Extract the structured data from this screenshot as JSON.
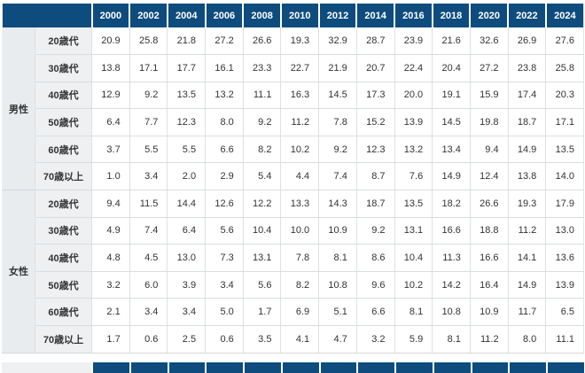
{
  "colors": {
    "header_bg": "#0e4c7e",
    "header_text": "#ffffff",
    "row_label_bg": "#eef0f2",
    "gender_label_bg": "#e9ecef",
    "grid_border": "#d9dde0",
    "value_text": "#333333"
  },
  "chart_data": {
    "type": "table",
    "columns": [
      "2000",
      "2002",
      "2004",
      "2006",
      "2008",
      "2010",
      "2012",
      "2014",
      "2016",
      "2018",
      "2020",
      "2022",
      "2024"
    ],
    "sections": [
      {
        "label": "男性",
        "rows": [
          {
            "label": "20歳代",
            "values": [
              20.9,
              25.8,
              21.8,
              27.2,
              26.6,
              19.3,
              32.9,
              28.7,
              23.9,
              21.6,
              32.6,
              26.9,
              27.6
            ]
          },
          {
            "label": "30歳代",
            "values": [
              13.8,
              17.1,
              17.7,
              16.1,
              23.3,
              22.7,
              21.9,
              20.7,
              22.4,
              20.4,
              27.2,
              23.8,
              25.8
            ]
          },
          {
            "label": "40歳代",
            "values": [
              12.9,
              9.2,
              13.5,
              13.2,
              11.1,
              16.3,
              14.5,
              17.3,
              20.0,
              19.1,
              15.9,
              17.4,
              20.3
            ]
          },
          {
            "label": "50歳代",
            "values": [
              6.4,
              7.7,
              12.3,
              8.0,
              9.2,
              11.2,
              7.8,
              15.2,
              13.9,
              14.5,
              19.8,
              18.7,
              17.1
            ]
          },
          {
            "label": "60歳代",
            "values": [
              3.7,
              5.5,
              5.5,
              6.6,
              8.2,
              10.2,
              9.2,
              12.3,
              13.2,
              13.4,
              9.4,
              14.9,
              13.5
            ]
          },
          {
            "label": "70歳以上",
            "values": [
              1.0,
              3.4,
              2.0,
              2.9,
              5.4,
              4.4,
              7.4,
              8.7,
              7.6,
              14.9,
              12.4,
              13.8,
              14.0
            ]
          }
        ]
      },
      {
        "label": "女性",
        "rows": [
          {
            "label": "20歳代",
            "values": [
              9.4,
              11.5,
              14.4,
              12.6,
              12.2,
              13.3,
              14.3,
              18.7,
              13.5,
              18.2,
              26.6,
              19.3,
              17.9
            ]
          },
          {
            "label": "30歳代",
            "values": [
              4.9,
              7.4,
              6.4,
              5.6,
              10.4,
              10.0,
              10.9,
              9.2,
              13.1,
              16.6,
              18.8,
              11.2,
              13.0
            ]
          },
          {
            "label": "40歳代",
            "values": [
              4.8,
              4.5,
              13.0,
              7.3,
              13.1,
              7.8,
              8.1,
              8.6,
              10.4,
              11.3,
              16.6,
              14.1,
              13.6
            ]
          },
          {
            "label": "50歳代",
            "values": [
              3.2,
              6.0,
              3.9,
              3.4,
              5.6,
              8.2,
              10.8,
              9.6,
              10.2,
              14.2,
              16.4,
              14.9,
              13.9
            ]
          },
          {
            "label": "60歳代",
            "values": [
              2.1,
              3.4,
              3.4,
              5.0,
              1.7,
              6.9,
              5.1,
              6.6,
              8.1,
              10.8,
              10.9,
              11.7,
              6.5
            ]
          },
          {
            "label": "70歳以上",
            "values": [
              1.7,
              0.6,
              2.5,
              0.6,
              3.5,
              4.1,
              4.7,
              3.2,
              5.9,
              8.1,
              11.2,
              8.0,
              11.1
            ]
          }
        ]
      }
    ]
  }
}
